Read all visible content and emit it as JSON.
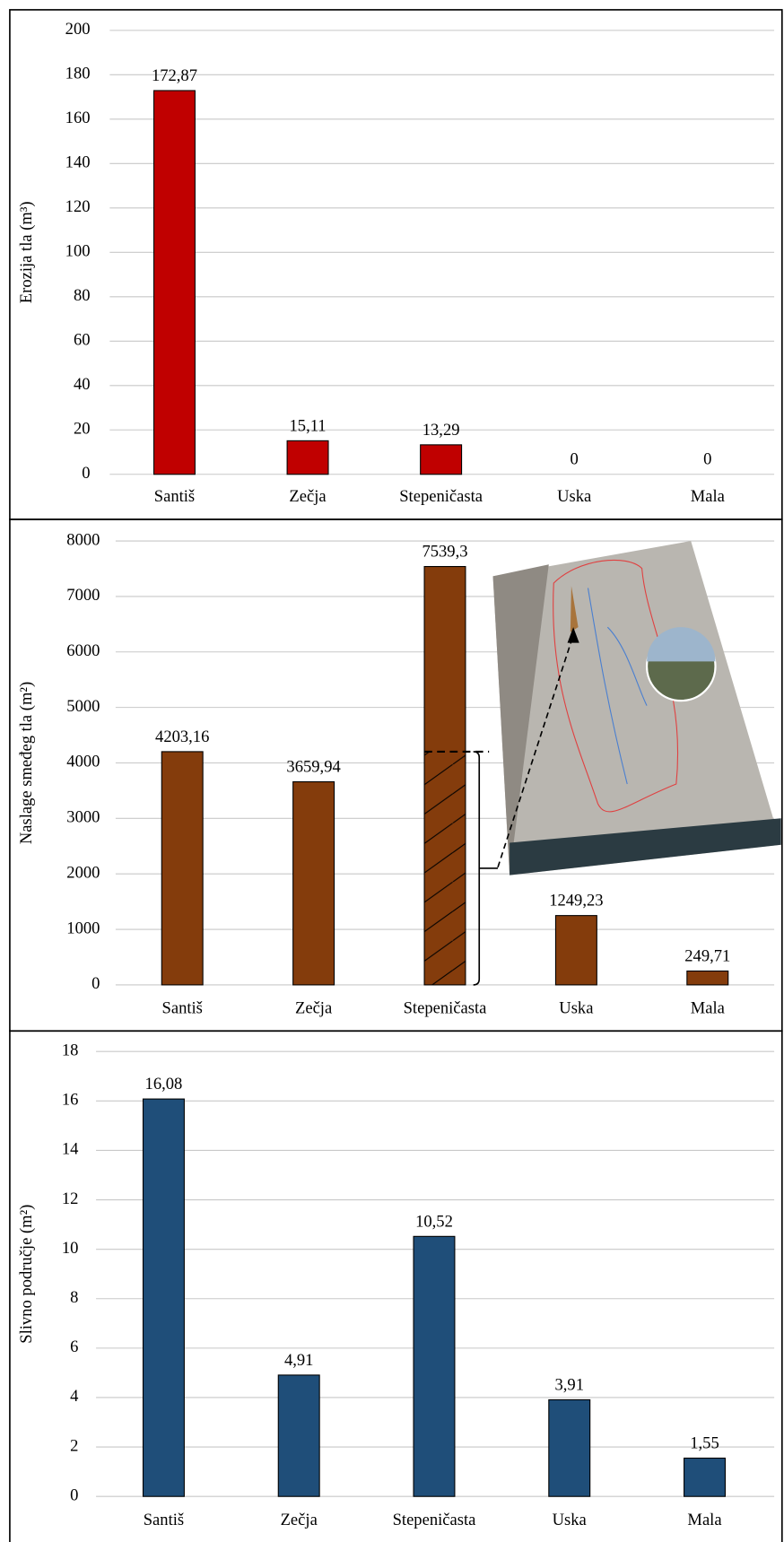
{
  "chart_data": [
    {
      "type": "bar",
      "y_label": "Erozija tla (m³)",
      "categories": [
        "Santiš",
        "Zečja",
        "Stepeničasta",
        "Uska",
        "Mala"
      ],
      "values": [
        172.87,
        15.11,
        13.29,
        0,
        0
      ],
      "value_labels": [
        "172,87",
        "15,11",
        "13,29",
        "0",
        "0"
      ],
      "color": "#c00000",
      "ylim": [
        0,
        200
      ],
      "yticks": [
        0,
        20,
        40,
        60,
        80,
        100,
        120,
        140,
        160,
        180,
        200
      ],
      "grid": true
    },
    {
      "type": "bar",
      "y_label": "Naslage smeđeg tla (m²)",
      "categories": [
        "Santiš",
        "Zečja",
        "Stepeničasta",
        "Uska",
        "Mala"
      ],
      "values": [
        4203.16,
        3659.94,
        7539.3,
        1249.23,
        249.71
      ],
      "value_labels": [
        "4203,16",
        "3659,94",
        "7539,3",
        "1249,23",
        "249,71"
      ],
      "color": "#843c0c",
      "ylim": [
        0,
        8000
      ],
      "yticks": [
        0,
        1000,
        2000,
        3000,
        4000,
        5000,
        6000,
        7000,
        8000
      ],
      "grid": true
    },
    {
      "type": "bar",
      "y_label": "Slivno područje (m²)",
      "categories": [
        "Santiš",
        "Zečja",
        "Stepeničasta",
        "Uska",
        "Mala"
      ],
      "values": [
        16.08,
        4.91,
        10.52,
        3.91,
        1.55
      ],
      "value_labels": [
        "16,08",
        "4,91",
        "10,52",
        "3,91",
        "1,55"
      ],
      "color": "#1f4e79",
      "ylim": [
        0,
        18
      ],
      "yticks": [
        0,
        2,
        4,
        6,
        8,
        10,
        12,
        14,
        16,
        18
      ],
      "grid": true
    }
  ]
}
